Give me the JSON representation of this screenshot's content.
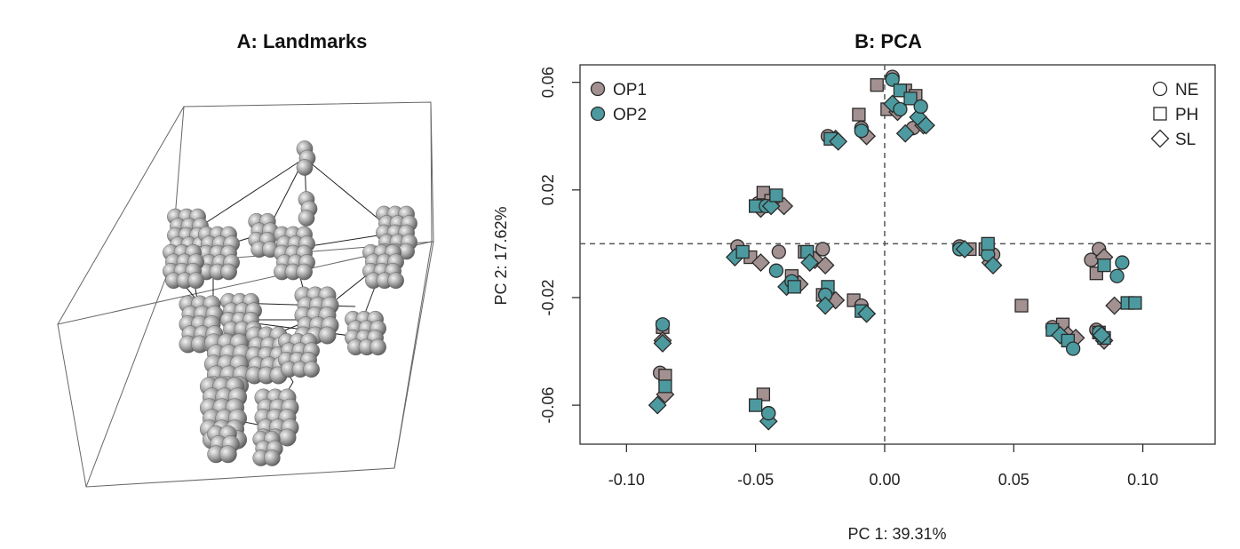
{
  "panel_a": {
    "title": "A: Landmarks"
  },
  "colors": {
    "OP1": "#a39191",
    "OP2": "#4c9a9f",
    "axis": "#222222",
    "reference_line": "#555555"
  },
  "chart_data": {
    "type": "scatter",
    "title": "B: PCA",
    "xlabel": "PC 1: 39.31%",
    "ylabel": "PC 2: 17.62%",
    "xlim": [
      -0.118,
      0.128
    ],
    "ylim": [
      -0.0745,
      0.0665
    ],
    "xticks": [
      -0.1,
      -0.05,
      0.0,
      0.05,
      0.1
    ],
    "xtick_labels": [
      "-0.10",
      "-0.05",
      "0.00",
      "0.05",
      "0.10"
    ],
    "yticks": [
      -0.06,
      -0.02,
      0.02,
      0.06
    ],
    "ytick_labels": [
      "-0.06",
      "-0.02",
      "0.02",
      "0.06"
    ],
    "reference_lines": {
      "x": 0,
      "y": 0
    },
    "grid": false,
    "legend_color": {
      "placement": "top-left",
      "entries": [
        "OP1",
        "OP2"
      ]
    },
    "legend_shape": {
      "placement": "top-right",
      "entries": [
        {
          "label": "NE",
          "shape": "circle"
        },
        {
          "label": "PH",
          "shape": "square"
        },
        {
          "label": "SL",
          "shape": "diamond"
        }
      ]
    },
    "series": [
      {
        "name": "OP1",
        "points": [
          [
            -0.087,
            -0.048,
            "circle"
          ],
          [
            -0.085,
            -0.049,
            "square"
          ],
          [
            -0.085,
            -0.056,
            "diamond"
          ],
          [
            -0.086,
            -0.031,
            "square"
          ],
          [
            -0.086,
            -0.036,
            "diamond"
          ],
          [
            -0.047,
            -0.056,
            "square"
          ],
          [
            -0.045,
            -0.063,
            "circle"
          ],
          [
            -0.049,
            0.015,
            "circle"
          ],
          [
            -0.047,
            0.019,
            "square"
          ],
          [
            -0.048,
            0.013,
            "diamond"
          ],
          [
            -0.044,
            0.016,
            "square"
          ],
          [
            -0.039,
            0.014,
            "diamond"
          ],
          [
            -0.057,
            -0.001,
            "circle"
          ],
          [
            -0.052,
            -0.005,
            "square"
          ],
          [
            -0.048,
            -0.007,
            "diamond"
          ],
          [
            -0.041,
            -0.003,
            "circle"
          ],
          [
            -0.036,
            -0.012,
            "square"
          ],
          [
            -0.033,
            -0.015,
            "diamond"
          ],
          [
            -0.031,
            -0.003,
            "square"
          ],
          [
            -0.027,
            -0.006,
            "diamond"
          ],
          [
            -0.024,
            -0.002,
            "circle"
          ],
          [
            -0.023,
            -0.008,
            "diamond"
          ],
          [
            -0.024,
            -0.019,
            "square"
          ],
          [
            -0.022,
            -0.021,
            "circle"
          ],
          [
            -0.019,
            -0.021,
            "diamond"
          ],
          [
            -0.012,
            -0.021,
            "square"
          ],
          [
            -0.009,
            -0.023,
            "circle"
          ],
          [
            -0.007,
            -0.026,
            "diamond"
          ],
          [
            -0.022,
            0.04,
            "circle"
          ],
          [
            -0.019,
            0.039,
            "diamond"
          ],
          [
            -0.01,
            0.048,
            "square"
          ],
          [
            -0.009,
            0.043,
            "circle"
          ],
          [
            -0.007,
            0.04,
            "diamond"
          ],
          [
            -0.003,
            0.059,
            "square"
          ],
          [
            0.001,
            0.05,
            "square"
          ],
          [
            0.003,
            0.062,
            "circle"
          ],
          [
            0.005,
            0.049,
            "diamond"
          ],
          [
            0.008,
            0.057,
            "square"
          ],
          [
            0.011,
            0.043,
            "circle"
          ],
          [
            0.015,
            0.044,
            "diamond"
          ],
          [
            0.012,
            0.055,
            "square"
          ],
          [
            0.029,
            -0.001,
            "circle"
          ],
          [
            0.033,
            -0.002,
            "square"
          ],
          [
            0.039,
            -0.002,
            "square"
          ],
          [
            0.041,
            -0.007,
            "diamond"
          ],
          [
            0.042,
            -0.004,
            "circle"
          ],
          [
            0.053,
            -0.023,
            "square"
          ],
          [
            0.065,
            -0.031,
            "circle"
          ],
          [
            0.069,
            -0.03,
            "square"
          ],
          [
            0.071,
            -0.034,
            "diamond"
          ],
          [
            0.074,
            -0.035,
            "diamond"
          ],
          [
            0.08,
            -0.006,
            "circle"
          ],
          [
            0.082,
            -0.011,
            "square"
          ],
          [
            0.083,
            -0.002,
            "circle"
          ],
          [
            0.085,
            -0.005,
            "diamond"
          ],
          [
            0.082,
            -0.032,
            "circle"
          ],
          [
            0.083,
            -0.033,
            "square"
          ],
          [
            0.085,
            -0.036,
            "diamond"
          ],
          [
            0.089,
            -0.023,
            "diamond"
          ]
        ]
      },
      {
        "name": "OP2",
        "points": [
          [
            -0.086,
            -0.03,
            "circle"
          ],
          [
            -0.086,
            -0.037,
            "diamond"
          ],
          [
            -0.085,
            -0.053,
            "square"
          ],
          [
            -0.088,
            -0.06,
            "diamond"
          ],
          [
            -0.05,
            -0.06,
            "square"
          ],
          [
            -0.045,
            -0.066,
            "diamond"
          ],
          [
            -0.045,
            -0.063,
            "circle"
          ],
          [
            -0.05,
            0.014,
            "square"
          ],
          [
            -0.046,
            0.014,
            "circle"
          ],
          [
            -0.044,
            0.014,
            "diamond"
          ],
          [
            -0.042,
            0.018,
            "square"
          ],
          [
            -0.058,
            -0.005,
            "diamond"
          ],
          [
            -0.055,
            -0.003,
            "square"
          ],
          [
            -0.042,
            -0.01,
            "circle"
          ],
          [
            -0.038,
            -0.016,
            "diamond"
          ],
          [
            -0.036,
            -0.014,
            "circle"
          ],
          [
            -0.035,
            -0.016,
            "square"
          ],
          [
            -0.03,
            -0.003,
            "square"
          ],
          [
            -0.029,
            -0.007,
            "diamond"
          ],
          [
            -0.022,
            -0.016,
            "square"
          ],
          [
            -0.023,
            -0.019,
            "circle"
          ],
          [
            -0.023,
            -0.023,
            "diamond"
          ],
          [
            -0.009,
            -0.025,
            "square"
          ],
          [
            -0.007,
            -0.026,
            "diamond"
          ],
          [
            -0.021,
            0.039,
            "square"
          ],
          [
            -0.018,
            0.038,
            "diamond"
          ],
          [
            -0.009,
            0.042,
            "circle"
          ],
          [
            0.003,
            0.061,
            "circle"
          ],
          [
            0.006,
            0.057,
            "square"
          ],
          [
            0.003,
            0.052,
            "diamond"
          ],
          [
            0.006,
            0.05,
            "circle"
          ],
          [
            0.01,
            0.054,
            "square"
          ],
          [
            0.013,
            0.047,
            "diamond"
          ],
          [
            0.014,
            0.051,
            "circle"
          ],
          [
            0.016,
            0.044,
            "diamond"
          ],
          [
            0.008,
            0.041,
            "diamond"
          ],
          [
            0.029,
            -0.002,
            "circle"
          ],
          [
            0.031,
            -0.002,
            "diamond"
          ],
          [
            0.04,
            -0.004,
            "circle"
          ],
          [
            0.042,
            -0.008,
            "diamond"
          ],
          [
            0.04,
            0.0,
            "square"
          ],
          [
            0.065,
            -0.032,
            "square"
          ],
          [
            0.068,
            -0.034,
            "diamond"
          ],
          [
            0.071,
            -0.036,
            "square"
          ],
          [
            0.073,
            -0.039,
            "circle"
          ],
          [
            0.083,
            -0.033,
            "circle"
          ],
          [
            0.085,
            -0.008,
            "square"
          ],
          [
            0.085,
            -0.035,
            "square"
          ],
          [
            0.09,
            -0.012,
            "circle"
          ],
          [
            0.092,
            -0.007,
            "circle"
          ],
          [
            0.094,
            -0.022,
            "square"
          ],
          [
            0.097,
            -0.022,
            "square"
          ],
          [
            0.084,
            -0.034,
            "diamond"
          ]
        ]
      }
    ]
  }
}
